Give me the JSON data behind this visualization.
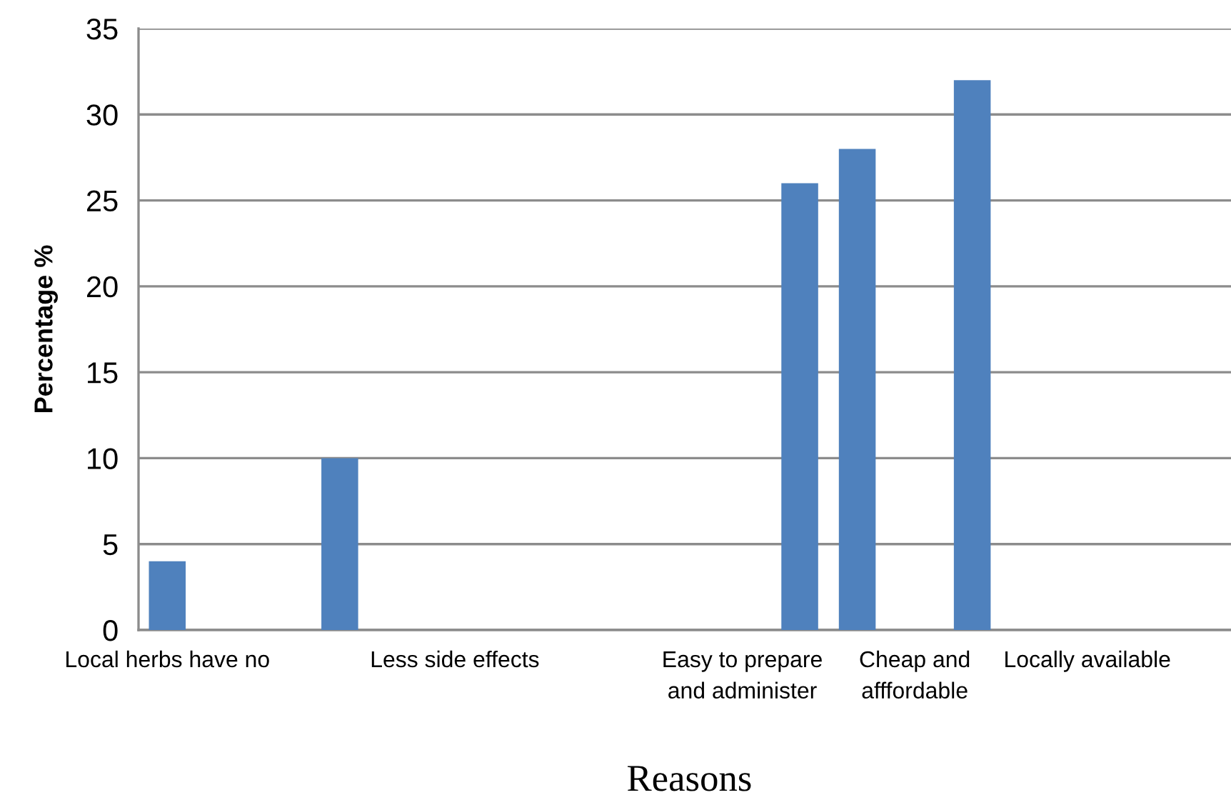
{
  "chart_data": {
    "type": "bar",
    "xlabel": "Reasons",
    "ylabel": "Percentage %",
    "categories": [
      "Local herbs have no",
      null,
      null,
      null,
      null,
      "Less side effects",
      null,
      null,
      null,
      null,
      "Easy to prepare\nand administer",
      null,
      null,
      "Cheap and\nafffordable",
      null,
      null,
      "Locally available",
      null,
      null
    ],
    "values": [
      4,
      null,
      null,
      10,
      null,
      null,
      null,
      null,
      null,
      null,
      null,
      26,
      28,
      null,
      32,
      null,
      null,
      null,
      null
    ],
    "color": "#4f81bd",
    "ylim": [
      0,
      35
    ],
    "yticks": [
      0,
      5,
      10,
      15,
      20,
      25,
      30,
      35
    ],
    "grid": "y"
  }
}
